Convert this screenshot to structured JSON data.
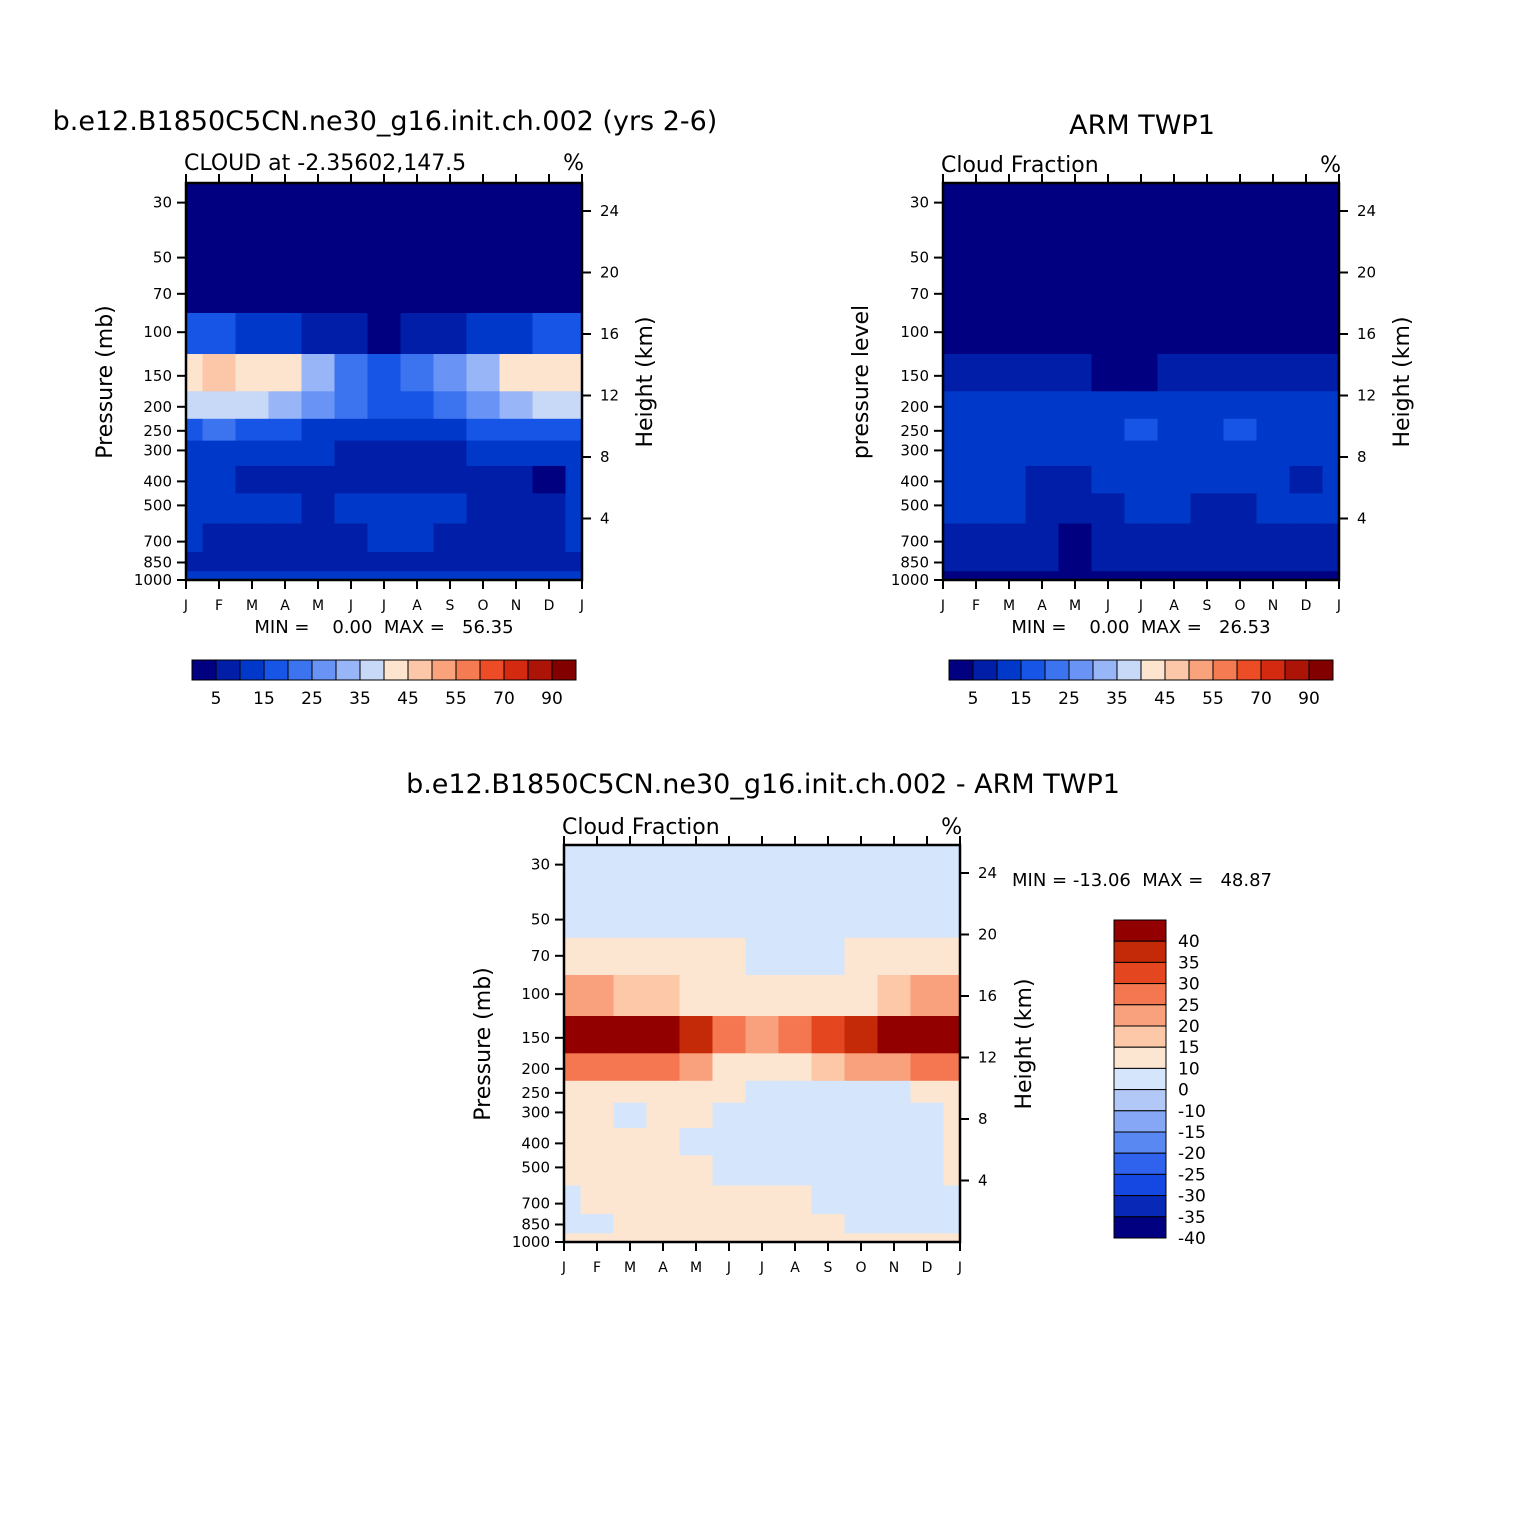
{
  "chart_data": [
    {
      "type": "heatmap",
      "name": "model",
      "title": "b.e12.B1850C5CN.ne30_g16.init.ch.002 (yrs 2-6)",
      "left_label": "CLOUD at -2.35602,147.5",
      "units": "%",
      "ylabel": "Pressure (mb)",
      "y2label": "Height (km)",
      "stats": "MIN =    0.00  MAX =   56.35",
      "x": [
        "J",
        "F",
        "M",
        "A",
        "M",
        "J",
        "J",
        "A",
        "S",
        "O",
        "N",
        "D",
        "J"
      ],
      "y_levels": [
        30,
        50,
        70,
        100,
        150,
        200,
        250,
        300,
        400,
        500,
        700,
        850,
        1000
      ],
      "y_tick_labels": [
        "30",
        "50",
        "70",
        "100",
        "150",
        "200",
        "250",
        "300",
        "400",
        "500",
        "700",
        "850",
        "1000"
      ],
      "y2_tick_labels": [
        "24",
        "20",
        "16",
        "12",
        "8",
        "4"
      ],
      "ylim": [
        25,
        1000
      ],
      "colorbar_labels": [
        "5",
        "15",
        "25",
        "35",
        "45",
        "55",
        "70",
        "90"
      ],
      "values": [
        [
          0,
          0,
          0,
          0,
          0,
          0,
          0,
          0,
          0,
          0,
          0,
          0,
          0
        ],
        [
          0,
          0,
          0,
          0,
          0,
          0,
          0,
          0,
          0,
          0,
          0,
          0,
          0
        ],
        [
          2,
          2,
          1,
          1,
          1,
          0,
          0,
          0,
          0,
          1,
          1,
          2,
          2
        ],
        [
          18,
          16,
          14,
          12,
          8,
          5,
          4,
          5,
          7,
          10,
          14,
          17,
          18
        ],
        [
          42,
          45,
          43,
          40,
          32,
          22,
          18,
          20,
          26,
          34,
          40,
          44,
          42
        ],
        [
          35,
          38,
          36,
          33,
          27,
          20,
          16,
          18,
          22,
          28,
          32,
          36,
          35
        ],
        [
          18,
          20,
          19,
          17,
          14,
          12,
          11,
          12,
          13,
          15,
          17,
          19,
          18
        ],
        [
          12,
          12,
          11,
          10,
          10,
          9,
          9,
          9,
          9,
          10,
          11,
          11,
          12
        ],
        [
          10,
          10,
          9,
          6,
          7,
          8,
          9,
          8,
          7,
          6,
          5,
          3,
          10
        ],
        [
          10,
          10,
          11,
          10,
          9,
          10,
          11,
          11,
          10,
          8,
          7,
          5,
          10
        ],
        [
          10,
          9,
          8,
          7,
          8,
          9,
          10,
          10,
          9,
          8,
          7,
          5,
          10
        ],
        [
          9,
          7,
          6,
          6,
          7,
          8,
          9,
          9,
          8,
          7,
          7,
          6,
          9
        ],
        [
          12,
          12,
          12,
          12,
          12,
          12,
          12,
          12,
          12,
          12,
          12,
          12,
          12
        ]
      ]
    },
    {
      "type": "heatmap",
      "name": "obs",
      "title": "ARM TWP1",
      "left_label": "Cloud Fraction",
      "units": "%",
      "ylabel": "pressure level",
      "y2label": "Height (km)",
      "stats": "MIN =    0.00  MAX =   26.53",
      "x": [
        "J",
        "F",
        "M",
        "A",
        "M",
        "J",
        "J",
        "A",
        "S",
        "O",
        "N",
        "D",
        "J"
      ],
      "y_levels": [
        30,
        50,
        70,
        100,
        150,
        200,
        250,
        300,
        400,
        500,
        700,
        850,
        1000
      ],
      "y_tick_labels": [
        "30",
        "50",
        "70",
        "100",
        "150",
        "200",
        "250",
        "300",
        "400",
        "500",
        "700",
        "850",
        "1000"
      ],
      "y2_tick_labels": [
        "24",
        "20",
        "16",
        "12",
        "8",
        "4"
      ],
      "ylim": [
        25,
        1000
      ],
      "colorbar_labels": [
        "5",
        "15",
        "25",
        "35",
        "45",
        "55",
        "70",
        "90"
      ],
      "values": [
        [
          0,
          0,
          0,
          0,
          0,
          0,
          0,
          0,
          0,
          0,
          0,
          0,
          0
        ],
        [
          0,
          0,
          0,
          0,
          0,
          0,
          0,
          0,
          0,
          0,
          0,
          0,
          0
        ],
        [
          0,
          0,
          0,
          0,
          0,
          0,
          0,
          0,
          0,
          0,
          0,
          0,
          0
        ],
        [
          1,
          1,
          1,
          1,
          1,
          0,
          0,
          0,
          0,
          1,
          1,
          1,
          1
        ],
        [
          8,
          8,
          7,
          6,
          5,
          4,
          4,
          5,
          6,
          7,
          7,
          8,
          8
        ],
        [
          14,
          14,
          13,
          12,
          11,
          12,
          13,
          12,
          12,
          13,
          13,
          14,
          14
        ],
        [
          14,
          14,
          13,
          12,
          11,
          13,
          16,
          13,
          12,
          15,
          13,
          14,
          14
        ],
        [
          12,
          12,
          12,
          11,
          10,
          11,
          13,
          12,
          11,
          12,
          12,
          12,
          12
        ],
        [
          11,
          11,
          10,
          8,
          8,
          10,
          13,
          11,
          10,
          11,
          10,
          9,
          11
        ],
        [
          10,
          10,
          10,
          7,
          6,
          9,
          12,
          10,
          9,
          9,
          10,
          10,
          10
        ],
        [
          9,
          9,
          8,
          5,
          4,
          6,
          9,
          8,
          6,
          5,
          6,
          8,
          9
        ],
        [
          8,
          8,
          7,
          5,
          4,
          6,
          8,
          8,
          6,
          6,
          7,
          8,
          8
        ],
        [
          3,
          3,
          3,
          3,
          3,
          3,
          3,
          3,
          3,
          3,
          3,
          3,
          3
        ]
      ]
    },
    {
      "type": "heatmap",
      "name": "diff",
      "title": "b.e12.B1850C5CN.ne30_g16.init.ch.002 - ARM TWP1",
      "left_label": "Cloud Fraction",
      "units": "%",
      "ylabel": "Pressure (mb)",
      "y2label": "Height (km)",
      "stats": "MIN = -13.06  MAX =   48.87",
      "x": [
        "J",
        "F",
        "M",
        "A",
        "M",
        "J",
        "J",
        "A",
        "S",
        "O",
        "N",
        "D",
        "J"
      ],
      "y_levels": [
        30,
        50,
        70,
        100,
        150,
        200,
        250,
        300,
        400,
        500,
        700,
        850,
        1000
      ],
      "y_tick_labels": [
        "30",
        "50",
        "70",
        "100",
        "150",
        "200",
        "250",
        "300",
        "400",
        "500",
        "700",
        "850",
        "1000"
      ],
      "y2_tick_labels": [
        "24",
        "20",
        "16",
        "12",
        "8",
        "4"
      ],
      "ylim": [
        25,
        1000
      ],
      "colorbar_labels": [
        "40",
        "35",
        "30",
        "25",
        "20",
        "15",
        "10",
        "0",
        "-10",
        "-15",
        "-20",
        "-25",
        "-30",
        "-35",
        "-40"
      ],
      "values": [
        [
          -3,
          -3,
          -3,
          -3,
          -3,
          -3,
          -3,
          -3,
          -3,
          -3,
          -3,
          -3,
          -3
        ],
        [
          -2,
          -2,
          -2,
          -2,
          -2,
          -2,
          -2,
          -2,
          -2,
          -2,
          -2,
          -2,
          -2
        ],
        [
          2,
          2,
          2,
          2,
          2,
          2,
          -2,
          -2,
          -2,
          2,
          2,
          2,
          2
        ],
        [
          17,
          15,
          13,
          11,
          7,
          5,
          4,
          5,
          7,
          9,
          13,
          16,
          17
        ],
        [
          42,
          46,
          44,
          40,
          32,
          22,
          18,
          20,
          26,
          34,
          40,
          44,
          42
        ],
        [
          21,
          24,
          23,
          21,
          16,
          8,
          3,
          6,
          10,
          15,
          19,
          22,
          21
        ],
        [
          4,
          6,
          6,
          5,
          3,
          0,
          -5,
          -5,
          -3,
          -3,
          -2,
          5,
          4
        ],
        [
          2,
          2,
          -1,
          2,
          3,
          -1,
          -4,
          -5,
          -4,
          -6,
          -6,
          -3,
          2
        ],
        [
          1,
          1,
          2,
          2,
          -1,
          -3,
          -4,
          -4,
          -3,
          -3,
          -5,
          -6,
          1
        ],
        [
          1,
          1,
          3,
          3,
          2,
          -2,
          -3,
          -3,
          -2,
          -1,
          -3,
          -4,
          1
        ],
        [
          -1,
          0,
          1,
          2,
          4,
          2,
          1,
          2,
          -1,
          -2,
          -1,
          -3,
          -1
        ],
        [
          -2,
          -1,
          1,
          1,
          3,
          2,
          1,
          1,
          1,
          -1,
          -2,
          -2,
          -2
        ],
        [
          1,
          1,
          1,
          1,
          1,
          1,
          1,
          1,
          1,
          1,
          1,
          1,
          1
        ]
      ]
    }
  ],
  "colors": {
    "pos_scale": [
      "#000080",
      "#001ea8",
      "#0039c9",
      "#1655e6",
      "#3c74f0",
      "#6994f6",
      "#97b5f7",
      "#c8d8f7",
      "#fde4cf",
      "#fbc7a8",
      "#faa27c",
      "#f57b52",
      "#ec4c26",
      "#d42a10",
      "#ac1407",
      "#820000"
    ],
    "div_scale": [
      "#000080",
      "#0828b8",
      "#1547e3",
      "#2f63ee",
      "#5a88f3",
      "#86a7f6",
      "#b2c9f8",
      "#d5e5fb",
      "#fde6d1",
      "#fcc8a8",
      "#f9a17c",
      "#f47751",
      "#e4461f",
      "#c52a08",
      "#920000"
    ]
  }
}
